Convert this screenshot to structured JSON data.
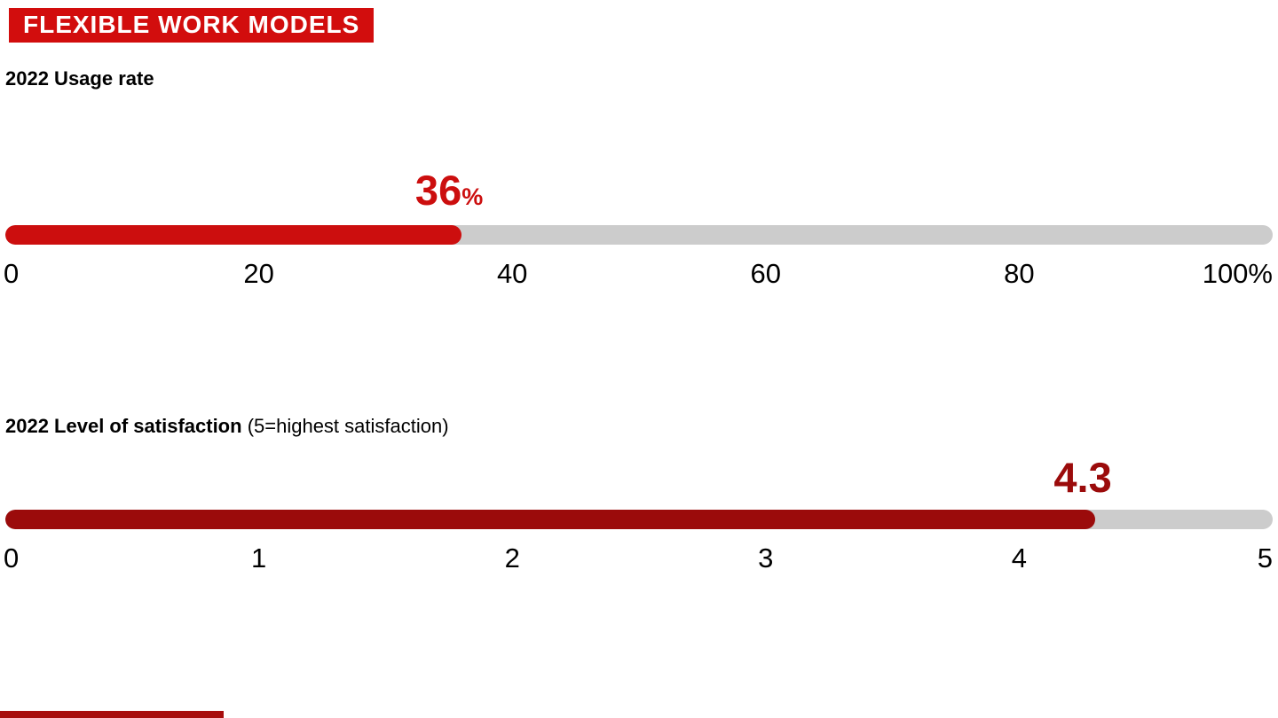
{
  "header": {
    "title": "FLEXIBLE WORK MODELS",
    "background": "#d20d0d",
    "text_color": "#ffffff"
  },
  "chart_data": [
    {
      "type": "bar",
      "title": "2022 Usage rate",
      "subtitle": "",
      "value": 36,
      "max": 100,
      "xlim": [
        0,
        100
      ],
      "value_label": "36",
      "value_suffix": "%",
      "tick_values": [
        0,
        20,
        40,
        60,
        80,
        100
      ],
      "tick_labels": [
        "0",
        "20",
        "40",
        "60",
        "80",
        "100%"
      ],
      "bar_color": "#cc0e0e",
      "value_color": "#cc0e0e",
      "track_color": "#cccccc",
      "legend": "none",
      "grid": "off"
    },
    {
      "type": "bar",
      "title": "2022 Level of satisfaction",
      "subtitle": "(5=highest satisfaction)",
      "value": 4.3,
      "max": 5,
      "xlim": [
        0,
        5
      ],
      "value_label": "4.3",
      "value_suffix": "",
      "tick_values": [
        0,
        1,
        2,
        3,
        4,
        5
      ],
      "tick_labels": [
        "0",
        "1",
        "2",
        "3",
        "4",
        "5"
      ],
      "bar_color": "#9b0b0b",
      "value_color": "#9b0b0b",
      "track_color": "#cccccc",
      "legend": "none",
      "grid": "off"
    }
  ],
  "footer": {
    "accent_color": "#a80d0d"
  }
}
